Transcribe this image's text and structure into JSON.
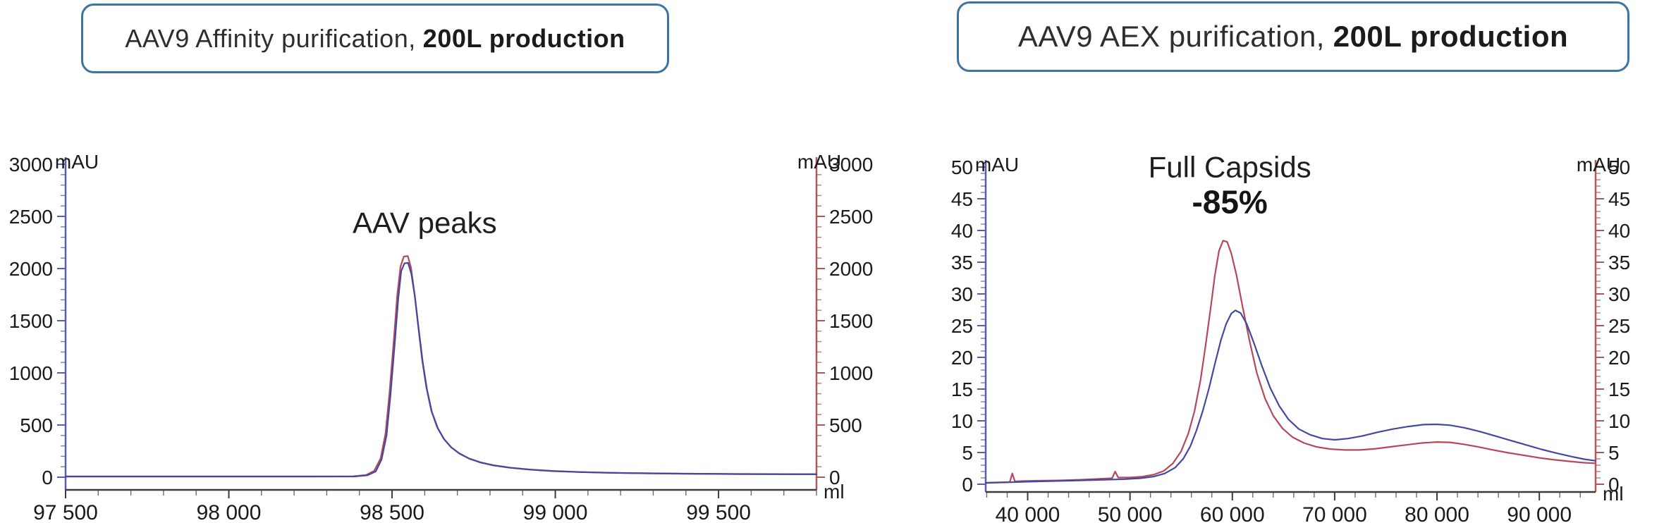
{
  "titles": {
    "left": {
      "normal": "AAV9 Affinity purification,",
      "bold": "200L production"
    },
    "right": {
      "normal": "AAV9 AEX purification,",
      "bold": "200L production"
    }
  },
  "colors": {
    "box_border": "#3c74a6",
    "series_red": "#b5485a",
    "series_blue": "#4348a0",
    "axis_left": "#5c5caa",
    "axis_right": "#b05858",
    "frame": "#3c3c3c"
  },
  "chart_data": [
    {
      "type": "line",
      "name": "affinity-chromatogram",
      "annotations": [
        {
          "text": "AAV peaks",
          "x": 98600,
          "y": 2340,
          "style": "normal"
        }
      ],
      "x_axis_label": "ml",
      "y_axis_label_left": "mAU",
      "y_axis_label_right": "mAU",
      "xlim": [
        97500,
        99800
      ],
      "ylim": [
        0,
        3000
      ],
      "x_minor_step": 100,
      "y_minor_step": 100,
      "x_ticks": [
        {
          "v": 97500,
          "label": "97 500"
        },
        {
          "v": 98000,
          "label": "98 000"
        },
        {
          "v": 98500,
          "label": "98 500"
        },
        {
          "v": 99000,
          "label": "99 000"
        },
        {
          "v": 99500,
          "label": "99 500"
        }
      ],
      "y_ticks": [
        {
          "v": 0,
          "label": "0"
        },
        {
          "v": 500,
          "label": "500"
        },
        {
          "v": 1000,
          "label": "1000"
        },
        {
          "v": 1500,
          "label": "1500"
        },
        {
          "v": 2000,
          "label": "2000"
        },
        {
          "v": 2500,
          "label": "2500"
        },
        {
          "v": 3000,
          "label": "3000"
        }
      ],
      "series": [
        {
          "name": "series-red",
          "color": "#b5485a",
          "points": [
            [
              97500,
              8
            ],
            [
              97900,
              8
            ],
            [
              98250,
              8
            ],
            [
              98380,
              9
            ],
            [
              98420,
              20
            ],
            [
              98445,
              60
            ],
            [
              98465,
              180
            ],
            [
              98480,
              420
            ],
            [
              98492,
              800
            ],
            [
              98505,
              1300
            ],
            [
              98516,
              1750
            ],
            [
              98526,
              2020
            ],
            [
              98536,
              2115
            ],
            [
              98548,
              2120
            ],
            [
              98558,
              2010
            ],
            [
              98568,
              1780
            ],
            [
              98580,
              1450
            ],
            [
              98592,
              1130
            ],
            [
              98605,
              860
            ],
            [
              98620,
              640
            ],
            [
              98638,
              480
            ],
            [
              98658,
              370
            ],
            [
              98680,
              290
            ],
            [
              98705,
              230
            ],
            [
              98735,
              180
            ],
            [
              98770,
              143
            ],
            [
              98810,
              115
            ],
            [
              98860,
              92
            ],
            [
              98920,
              74
            ],
            [
              98990,
              60
            ],
            [
              99070,
              50
            ],
            [
              99160,
              43
            ],
            [
              99270,
              38
            ],
            [
              99400,
              34
            ],
            [
              99550,
              31
            ],
            [
              99800,
              29
            ]
          ]
        },
        {
          "name": "series-blue",
          "color": "#4348a0",
          "points": [
            [
              97500,
              6
            ],
            [
              97900,
              6
            ],
            [
              98250,
              6
            ],
            [
              98385,
              7
            ],
            [
              98425,
              18
            ],
            [
              98450,
              55
            ],
            [
              98468,
              170
            ],
            [
              98483,
              400
            ],
            [
              98495,
              780
            ],
            [
              98508,
              1270
            ],
            [
              98519,
              1710
            ],
            [
              98528,
              1975
            ],
            [
              98538,
              2050
            ],
            [
              98549,
              2055
            ],
            [
              98559,
              1950
            ],
            [
              98570,
              1730
            ],
            [
              98582,
              1410
            ],
            [
              98594,
              1100
            ],
            [
              98607,
              840
            ],
            [
              98622,
              625
            ],
            [
              98640,
              470
            ],
            [
              98660,
              362
            ],
            [
              98682,
              284
            ],
            [
              98707,
              226
            ],
            [
              98737,
              177
            ],
            [
              98772,
              140
            ],
            [
              98812,
              112
            ],
            [
              98862,
              90
            ],
            [
              98922,
              72
            ],
            [
              98992,
              58
            ],
            [
              99072,
              49
            ],
            [
              99162,
              42
            ],
            [
              99272,
              37
            ],
            [
              99402,
              33
            ],
            [
              99552,
              30
            ],
            [
              99800,
              28
            ]
          ]
        }
      ]
    },
    {
      "type": "line",
      "name": "aex-chromatogram",
      "annotations": [
        {
          "text": "Full Capsids",
          "x": 59750,
          "y": 48.4,
          "style": "normal"
        },
        {
          "text": "-85%",
          "x": 59750,
          "y": 42.7,
          "style": "bold"
        }
      ],
      "x_axis_label": "ml",
      "y_axis_label_left": "mAU",
      "y_axis_label_right": "mAU",
      "xlim": [
        35900,
        95500
      ],
      "ylim": [
        0,
        50
      ],
      "x_minor_step": 2000,
      "y_minor_step": 1,
      "x_ticks": [
        {
          "v": 40000,
          "label": "40 000"
        },
        {
          "v": 50000,
          "label": "50 000"
        },
        {
          "v": 60000,
          "label": "60 000"
        },
        {
          "v": 70000,
          "label": "70 000"
        },
        {
          "v": 80000,
          "label": "80 000"
        },
        {
          "v": 90000,
          "label": "90 000"
        }
      ],
      "y_ticks": [
        {
          "v": 0,
          "label": "0"
        },
        {
          "v": 5,
          "label": "5"
        },
        {
          "v": 10,
          "label": "10"
        },
        {
          "v": 15,
          "label": "15"
        },
        {
          "v": 20,
          "label": "20"
        },
        {
          "v": 25,
          "label": "25"
        },
        {
          "v": 30,
          "label": "30"
        },
        {
          "v": 35,
          "label": "35"
        },
        {
          "v": 40,
          "label": "40"
        },
        {
          "v": 45,
          "label": "45"
        },
        {
          "v": 50,
          "label": "50"
        }
      ],
      "series": [
        {
          "name": "series-red",
          "color": "#b5485a",
          "points": [
            [
              35900,
              0.25
            ],
            [
              37200,
              0.3
            ],
            [
              38250,
              0.35
            ],
            [
              38500,
              1.7
            ],
            [
              38750,
              0.45
            ],
            [
              39500,
              0.5
            ],
            [
              41000,
              0.55
            ],
            [
              43000,
              0.6
            ],
            [
              45000,
              0.7
            ],
            [
              47000,
              0.85
            ],
            [
              48250,
              0.95
            ],
            [
              48550,
              2.0
            ],
            [
              48850,
              1.05
            ],
            [
              50000,
              1.05
            ],
            [
              51200,
              1.2
            ],
            [
              52300,
              1.5
            ],
            [
              53300,
              2.1
            ],
            [
              54200,
              3.3
            ],
            [
              55000,
              5.2
            ],
            [
              55700,
              8.0
            ],
            [
              56300,
              11.5
            ],
            [
              56900,
              16.5
            ],
            [
              57400,
              22
            ],
            [
              57900,
              28
            ],
            [
              58300,
              33
            ],
            [
              58700,
              36.8
            ],
            [
              59100,
              38.4
            ],
            [
              59500,
              38.2
            ],
            [
              59900,
              36.4
            ],
            [
              60400,
              33
            ],
            [
              61000,
              28
            ],
            [
              61700,
              22.5
            ],
            [
              62400,
              17.5
            ],
            [
              63200,
              13.5
            ],
            [
              64000,
              10.8
            ],
            [
              64900,
              8.8
            ],
            [
              65900,
              7.4
            ],
            [
              67000,
              6.5
            ],
            [
              68200,
              5.9
            ],
            [
              69500,
              5.55
            ],
            [
              71000,
              5.4
            ],
            [
              72500,
              5.4
            ],
            [
              74000,
              5.6
            ],
            [
              75500,
              5.9
            ],
            [
              77000,
              6.2
            ],
            [
              78500,
              6.5
            ],
            [
              80000,
              6.65
            ],
            [
              81300,
              6.6
            ],
            [
              82600,
              6.3
            ],
            [
              84000,
              5.9
            ],
            [
              85500,
              5.4
            ],
            [
              87000,
              4.95
            ],
            [
              88500,
              4.55
            ],
            [
              90000,
              4.15
            ],
            [
              91500,
              3.85
            ],
            [
              93000,
              3.6
            ],
            [
              94300,
              3.4
            ],
            [
              95450,
              3.3
            ]
          ]
        },
        {
          "name": "series-blue",
          "color": "#4348a0",
          "points": [
            [
              35900,
              0.2
            ],
            [
              38000,
              0.3
            ],
            [
              40000,
              0.4
            ],
            [
              42500,
              0.5
            ],
            [
              45000,
              0.6
            ],
            [
              47500,
              0.7
            ],
            [
              49500,
              0.8
            ],
            [
              51000,
              0.95
            ],
            [
              52300,
              1.2
            ],
            [
              53400,
              1.7
            ],
            [
              54400,
              2.6
            ],
            [
              55200,
              4.0
            ],
            [
              55900,
              6.0
            ],
            [
              56500,
              8.5
            ],
            [
              57100,
              11.5
            ],
            [
              57700,
              15
            ],
            [
              58300,
              19
            ],
            [
              58900,
              22.8
            ],
            [
              59400,
              25.3
            ],
            [
              59900,
              26.9
            ],
            [
              60300,
              27.4
            ],
            [
              60800,
              27.0
            ],
            [
              61400,
              25.3
            ],
            [
              62100,
              22.3
            ],
            [
              62900,
              18.6
            ],
            [
              63700,
              15.2
            ],
            [
              64600,
              12.3
            ],
            [
              65500,
              10.2
            ],
            [
              66500,
              8.7
            ],
            [
              67600,
              7.8
            ],
            [
              68800,
              7.2
            ],
            [
              70000,
              7.0
            ],
            [
              71300,
              7.2
            ],
            [
              72700,
              7.6
            ],
            [
              74200,
              8.2
            ],
            [
              75700,
              8.7
            ],
            [
              77200,
              9.1
            ],
            [
              78700,
              9.4
            ],
            [
              80000,
              9.45
            ],
            [
              81300,
              9.3
            ],
            [
              82700,
              8.9
            ],
            [
              84200,
              8.3
            ],
            [
              85700,
              7.6
            ],
            [
              87200,
              6.9
            ],
            [
              88700,
              6.2
            ],
            [
              90200,
              5.5
            ],
            [
              91700,
              4.9
            ],
            [
              93200,
              4.35
            ],
            [
              94400,
              3.95
            ],
            [
              95450,
              3.7
            ]
          ]
        }
      ]
    }
  ]
}
